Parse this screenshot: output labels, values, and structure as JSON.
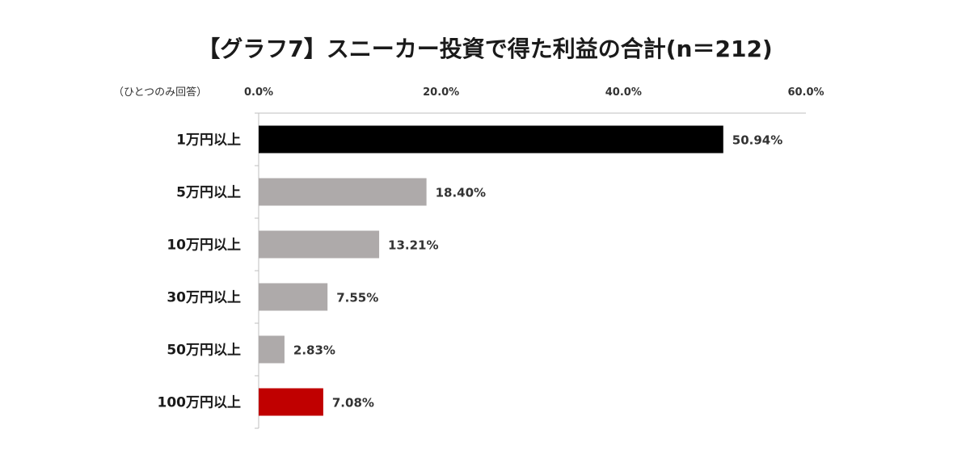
{
  "chart_data": {
    "type": "bar",
    "orientation": "horizontal",
    "title": "【グラフ7】スニーカー投資で得た利益の合計(n＝212)",
    "note": "（ひとつのみ回答）",
    "categories": [
      "1万円以上",
      "5万円以上",
      "10万円以上",
      "30万円以上",
      "50万円以上",
      "100万円以上"
    ],
    "values": [
      50.94,
      18.4,
      13.21,
      7.55,
      2.83,
      7.08
    ],
    "value_labels": [
      "50.94%",
      "18.40%",
      "13.21%",
      "7.55%",
      "2.83%",
      "7.08%"
    ],
    "bar_colors": [
      "#000000",
      "#aeaaaa",
      "#aeaaaa",
      "#aeaaaa",
      "#aeaaaa",
      "#c00000"
    ],
    "xlim": [
      0,
      60
    ],
    "xticks": [
      0,
      20,
      40,
      60
    ],
    "xtick_labels": [
      "0.0%",
      "20.0%",
      "40.0%",
      "60.0%"
    ],
    "x_axis_position": "top",
    "grid": false,
    "legend": "none"
  }
}
